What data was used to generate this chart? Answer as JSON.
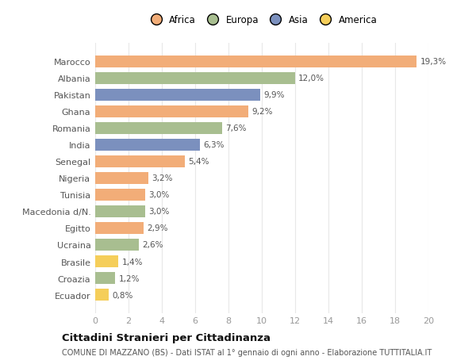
{
  "categories": [
    "Marocco",
    "Albania",
    "Pakistan",
    "Ghana",
    "Romania",
    "India",
    "Senegal",
    "Nigeria",
    "Tunisia",
    "Macedonia d/N.",
    "Egitto",
    "Ucraina",
    "Brasile",
    "Croazia",
    "Ecuador"
  ],
  "values": [
    19.3,
    12.0,
    9.9,
    9.2,
    7.6,
    6.3,
    5.4,
    3.2,
    3.0,
    3.0,
    2.9,
    2.6,
    1.4,
    1.2,
    0.8
  ],
  "labels": [
    "19,3%",
    "12,0%",
    "9,9%",
    "9,2%",
    "7,6%",
    "6,3%",
    "5,4%",
    "3,2%",
    "3,0%",
    "3,0%",
    "2,9%",
    "2,6%",
    "1,4%",
    "1,2%",
    "0,8%"
  ],
  "colors": [
    "#F2AD78",
    "#A8BE90",
    "#7B90BE",
    "#F2AD78",
    "#A8BE90",
    "#7B90BE",
    "#F2AD78",
    "#F2AD78",
    "#F2AD78",
    "#A8BE90",
    "#F2AD78",
    "#A8BE90",
    "#F5CE5A",
    "#A8BE90",
    "#F5CE5A"
  ],
  "legend_labels": [
    "Africa",
    "Europa",
    "Asia",
    "America"
  ],
  "legend_colors": [
    "#F2AD78",
    "#A8BE90",
    "#7B90BE",
    "#F5CE5A"
  ],
  "title": "Cittadini Stranieri per Cittadinanza",
  "subtitle": "COMUNE DI MAZZANO (BS) - Dati ISTAT al 1° gennaio di ogni anno - Elaborazione TUTTITALIA.IT",
  "xlim": [
    0,
    20
  ],
  "xticks": [
    0,
    2,
    4,
    6,
    8,
    10,
    12,
    14,
    16,
    18,
    20
  ],
  "bg_color": "#ffffff",
  "grid_color": "#e8e8e8",
  "bar_height": 0.72
}
